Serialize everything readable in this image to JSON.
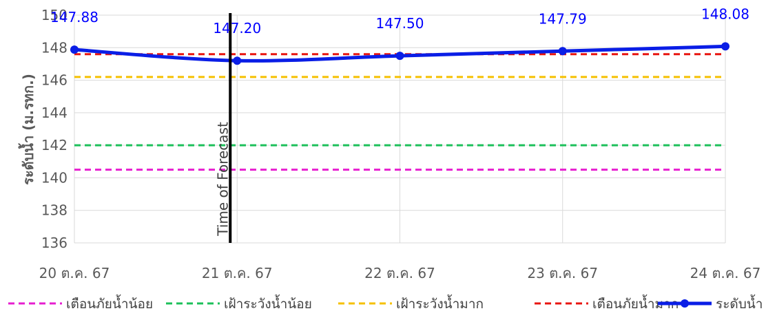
{
  "chart_data": {
    "type": "line",
    "title": "",
    "xlabel": "",
    "ylabel": "ระดับน้ำ (ม.รทก.)",
    "ylim": [
      136,
      150
    ],
    "yticks": [
      136,
      138,
      140,
      142,
      144,
      146,
      148,
      150
    ],
    "categories": [
      "20 ต.ค. 67",
      "21 ต.ค. 67",
      "22 ต.ค. 67",
      "23 ต.ค. 67",
      "24 ต.ค. 67"
    ],
    "grid": "vertical and horizontal gridlines",
    "legend_position": "bottom",
    "vertical_marker": {
      "label": "Time of Forecast",
      "x_index": 1,
      "color": "#000000"
    },
    "series": [
      {
        "name": "เตือนภัยน้ำน้อย",
        "style": "dashed",
        "color": "#e61ecf",
        "values": [
          140.5,
          140.5,
          140.5,
          140.5,
          140.5
        ]
      },
      {
        "name": "เฝ้าระวังน้ำน้อย",
        "style": "dashed",
        "color": "#1cc05a",
        "values": [
          142.0,
          142.0,
          142.0,
          142.0,
          142.0
        ]
      },
      {
        "name": "เฝ้าระวังน้ำมาก",
        "style": "dashed",
        "color": "#f5c000",
        "values": [
          146.2,
          146.2,
          146.2,
          146.2,
          146.2
        ]
      },
      {
        "name": "เตือนภัยน้ำมาก",
        "style": "dashed",
        "color": "#e8140f",
        "values": [
          147.6,
          147.6,
          147.6,
          147.6,
          147.6
        ]
      },
      {
        "name": "ระดับน้ำ",
        "style": "solid-markers",
        "color": "#0a1ee6",
        "values": [
          147.88,
          147.2,
          147.5,
          147.79,
          148.08
        ],
        "data_labels": [
          "147.88",
          "147.20",
          "147.50",
          "147.79",
          "148.08"
        ]
      }
    ]
  }
}
